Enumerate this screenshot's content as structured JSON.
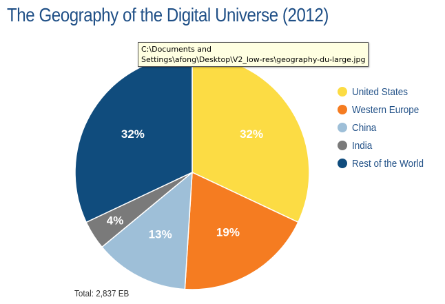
{
  "chart_data": {
    "type": "pie",
    "title": "The Geography of the Digital Universe (2012)",
    "categories": [
      "United States",
      "Western Europe",
      "China",
      "India",
      "Rest of the World"
    ],
    "values": [
      32,
      19,
      13,
      4,
      32
    ],
    "labels": [
      "32%",
      "19%",
      "13%",
      "4%",
      "32%"
    ],
    "colors": [
      "#fcdc44",
      "#f57c21",
      "#9ebfd8",
      "#7a7a7a",
      "#104c7d"
    ],
    "legend_position": "right",
    "start_angle": "top, clockwise",
    "note": "Total: 2,837 EB"
  },
  "tooltip": {
    "line1": "C:\\Documents and",
    "line2": "Settings\\afong\\Desktop\\V2_low-res\\geography-du-large.jpg"
  }
}
